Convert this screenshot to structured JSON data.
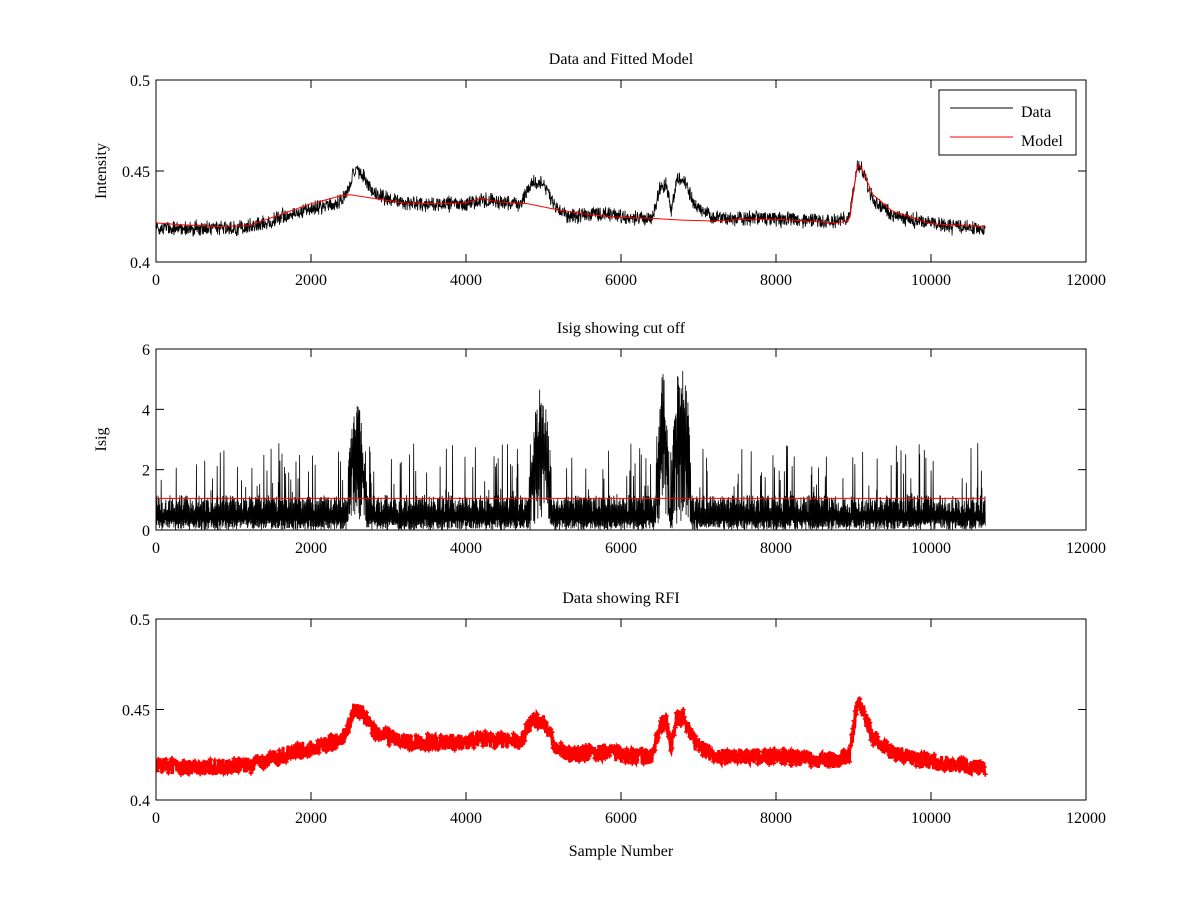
{
  "figure": {
    "xlabel": "Sample Number"
  },
  "chart_data": [
    {
      "type": "line",
      "title": "Data and Fitted Model",
      "xlabel": "",
      "ylabel": "Intensity",
      "xlim": [
        0,
        12000
      ],
      "ylim": [
        0.4,
        0.5
      ],
      "xticks": [
        0,
        2000,
        4000,
        6000,
        8000,
        10000,
        12000
      ],
      "yticks": [
        0.4,
        0.45,
        0.5
      ],
      "ytick_labels": [
        "0.4",
        "0.45",
        "0.5"
      ],
      "grid": false,
      "legend": {
        "placement": "top-right",
        "entries": [
          "Data",
          "Model"
        ]
      },
      "series": [
        {
          "name": "Data",
          "color": "#000000",
          "style": "noisy-line",
          "n_points": 10700,
          "x_range": [
            0,
            10700
          ],
          "noise_amplitude": 0.0035,
          "baseline_points": [
            [
              0,
              0.419
            ],
            [
              600,
              0.418
            ],
            [
              1200,
              0.419
            ],
            [
              1800,
              0.427
            ],
            [
              2300,
              0.432
            ],
            [
              2450,
              0.436
            ],
            [
              2550,
              0.45
            ],
            [
              2650,
              0.449
            ],
            [
              2800,
              0.438
            ],
            [
              3200,
              0.432
            ],
            [
              4000,
              0.432
            ],
            [
              4200,
              0.434
            ],
            [
              4700,
              0.432
            ],
            [
              4850,
              0.444
            ],
            [
              5000,
              0.443
            ],
            [
              5150,
              0.43
            ],
            [
              5300,
              0.425
            ],
            [
              5800,
              0.427
            ],
            [
              6100,
              0.424
            ],
            [
              6400,
              0.424
            ],
            [
              6500,
              0.44
            ],
            [
              6580,
              0.444
            ],
            [
              6650,
              0.428
            ],
            [
              6720,
              0.445
            ],
            [
              6800,
              0.446
            ],
            [
              6950,
              0.432
            ],
            [
              7200,
              0.424
            ],
            [
              8000,
              0.424
            ],
            [
              8800,
              0.422
            ],
            [
              8950,
              0.425
            ],
            [
              9050,
              0.454
            ],
            [
              9100,
              0.452
            ],
            [
              9250,
              0.434
            ],
            [
              9500,
              0.426
            ],
            [
              10000,
              0.421
            ],
            [
              10700,
              0.418
            ]
          ]
        },
        {
          "name": "Model",
          "color": "#ff0000",
          "style": "smooth-line",
          "points": [
            [
              0,
              0.4215
            ],
            [
              300,
              0.4205
            ],
            [
              800,
              0.4195
            ],
            [
              1200,
              0.42
            ],
            [
              1600,
              0.426
            ],
            [
              2000,
              0.432
            ],
            [
              2400,
              0.4365
            ],
            [
              2500,
              0.437
            ],
            [
              2800,
              0.435
            ],
            [
              3200,
              0.4325
            ],
            [
              3600,
              0.432
            ],
            [
              4000,
              0.4325
            ],
            [
              4200,
              0.435
            ],
            [
              4400,
              0.433
            ],
            [
              4800,
              0.432
            ],
            [
              5200,
              0.4285
            ],
            [
              5600,
              0.426
            ],
            [
              6000,
              0.4245
            ],
            [
              6400,
              0.424
            ],
            [
              6800,
              0.423
            ],
            [
              7200,
              0.4225
            ],
            [
              7600,
              0.4235
            ],
            [
              8000,
              0.4235
            ],
            [
              8400,
              0.4225
            ],
            [
              8800,
              0.4215
            ],
            [
              8950,
              0.423
            ],
            [
              9050,
              0.454
            ],
            [
              9100,
              0.452
            ],
            [
              9250,
              0.437
            ],
            [
              9500,
              0.428
            ],
            [
              10000,
              0.421
            ],
            [
              10700,
              0.4195
            ]
          ]
        }
      ]
    },
    {
      "type": "line",
      "title": "Isig showing cut off",
      "xlabel": "",
      "ylabel": "Isig",
      "xlim": [
        0,
        12000
      ],
      "ylim": [
        0,
        6
      ],
      "xticks": [
        0,
        2000,
        4000,
        6000,
        8000,
        10000,
        12000
      ],
      "yticks": [
        0,
        2,
        4,
        6
      ],
      "ytick_labels": [
        "0",
        "2",
        "4",
        "6"
      ],
      "grid": false,
      "series": [
        {
          "name": "Isig",
          "color": "#000000",
          "style": "spiky-line",
          "n_points": 10700,
          "x_range": [
            0,
            10700
          ],
          "base_level": 1.0,
          "typical_max": 2.9,
          "peaks": [
            {
              "x_range": [
                2480,
                2700
              ],
              "min": 0.3,
              "max": 4.3
            },
            {
              "x_range": [
                4830,
                5100
              ],
              "min": 0.2,
              "max": 4.7
            },
            {
              "x_range": [
                6450,
                6620
              ],
              "min": 0.1,
              "max": 5.2
            },
            {
              "x_range": [
                6660,
                6900
              ],
              "min": 0.1,
              "max": 5.8
            }
          ]
        },
        {
          "name": "cut off",
          "color": "#ff0000",
          "style": "flat-line",
          "points": [
            [
              0,
              1.05
            ],
            [
              10700,
              1.05
            ]
          ]
        }
      ]
    },
    {
      "type": "scatter",
      "title": "Data showing RFI",
      "xlabel": "Sample Number",
      "ylabel": "",
      "xlim": [
        0,
        12000
      ],
      "ylim": [
        0.4,
        0.5
      ],
      "xticks": [
        0,
        2000,
        4000,
        6000,
        8000,
        10000,
        12000
      ],
      "yticks": [
        0.4,
        0.45,
        0.5
      ],
      "ytick_labels": [
        "0.4",
        "0.45",
        "0.5"
      ],
      "grid": false,
      "series": [
        {
          "name": "RFI",
          "color": "#ff0000",
          "style": "dense-markers",
          "n_points": 10700,
          "x_range": [
            0,
            10700
          ],
          "noise_amplitude": 0.0045,
          "baseline_ref": "Data"
        }
      ]
    }
  ]
}
